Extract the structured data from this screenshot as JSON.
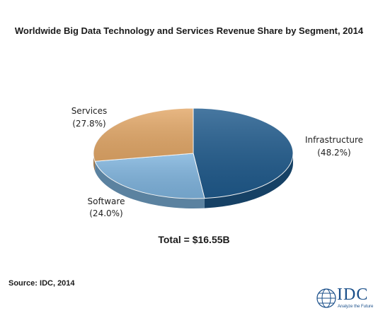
{
  "chart_data": {
    "type": "pie",
    "title": "Worldwide Big Data Technology and Services Revenue Share by Segment, 2014",
    "slices": [
      {
        "name": "Infrastructure",
        "value": 48.2,
        "label_value": "(48.2%)",
        "color": "#1f5a8c"
      },
      {
        "name": "Software",
        "value": 24.0,
        "label_value": "(24.0%)",
        "color": "#7fb4de"
      },
      {
        "name": "Services",
        "value": 27.8,
        "label_value": "(27.8%)",
        "color": "#e3a868"
      }
    ],
    "style": "3d-tilted",
    "total_label": "Total = $16.55B"
  },
  "footer": {
    "source": "Source: IDC, 2014"
  },
  "logo": {
    "name": "IDC",
    "tagline": "Analyze the Future",
    "color": "#1a4f8a"
  }
}
